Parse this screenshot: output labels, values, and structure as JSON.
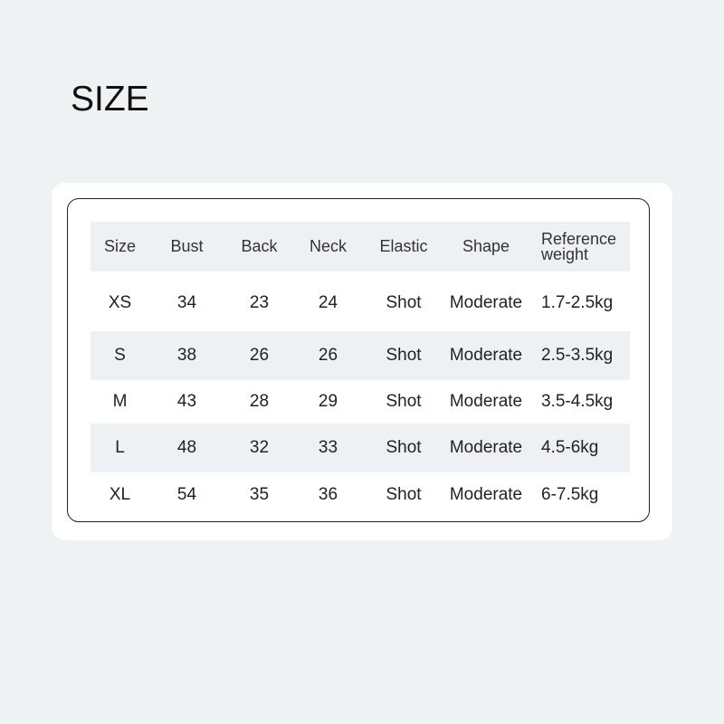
{
  "title": "SIZE",
  "table": {
    "headers": [
      "Size",
      "Bust",
      "Back",
      "Neck",
      "Elastic",
      "Shape",
      "Reference weight"
    ],
    "rows": [
      [
        "XS",
        "34",
        "23",
        "24",
        "Shot",
        "Moderate",
        "1.7-2.5kg"
      ],
      [
        "S",
        "38",
        "26",
        "26",
        "Shot",
        "Moderate",
        "2.5-3.5kg"
      ],
      [
        "M",
        "43",
        "28",
        "29",
        "Shot",
        "Moderate",
        "3.5-4.5kg"
      ],
      [
        "L",
        "48",
        "32",
        "33",
        "Shot",
        "Moderate",
        "4.5-6kg"
      ],
      [
        "XL",
        "54",
        "35",
        "36",
        "Shot",
        "Moderate",
        "6-7.5kg"
      ]
    ]
  },
  "colors": {
    "background": "#eef2f3",
    "card": "#ffffff",
    "row_shade": "#eef1f3",
    "border": "#222222"
  }
}
